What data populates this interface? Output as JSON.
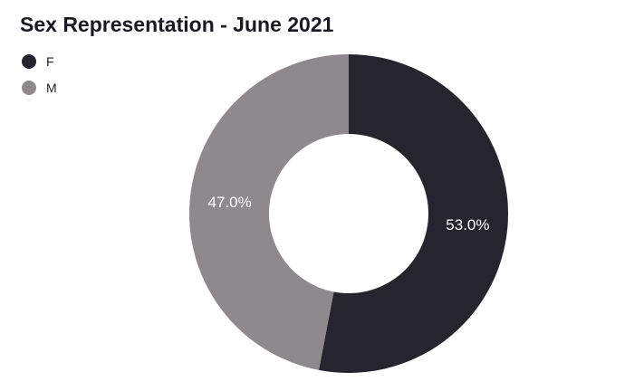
{
  "title": "Sex Representation - June 2021",
  "legend": {
    "items": [
      {
        "label": "F",
        "color": "#26242F"
      },
      {
        "label": "M",
        "color": "#8D898D"
      }
    ]
  },
  "chart_data": {
    "type": "pie",
    "subtype": "donut",
    "title": "Sex Representation - June 2021",
    "legend_position": "top-left",
    "direction": "clockwise",
    "start_angle_deg": 0,
    "inner_radius_ratio": 0.5,
    "label_color": "#FFFFFF",
    "background_color": "#FFFFFF",
    "slices": [
      {
        "name": "F",
        "value": 53.0,
        "label": "53.0%",
        "color": "#26242F"
      },
      {
        "name": "M",
        "value": 47.0,
        "label": "47.0%",
        "color": "#8D898D"
      }
    ]
  }
}
